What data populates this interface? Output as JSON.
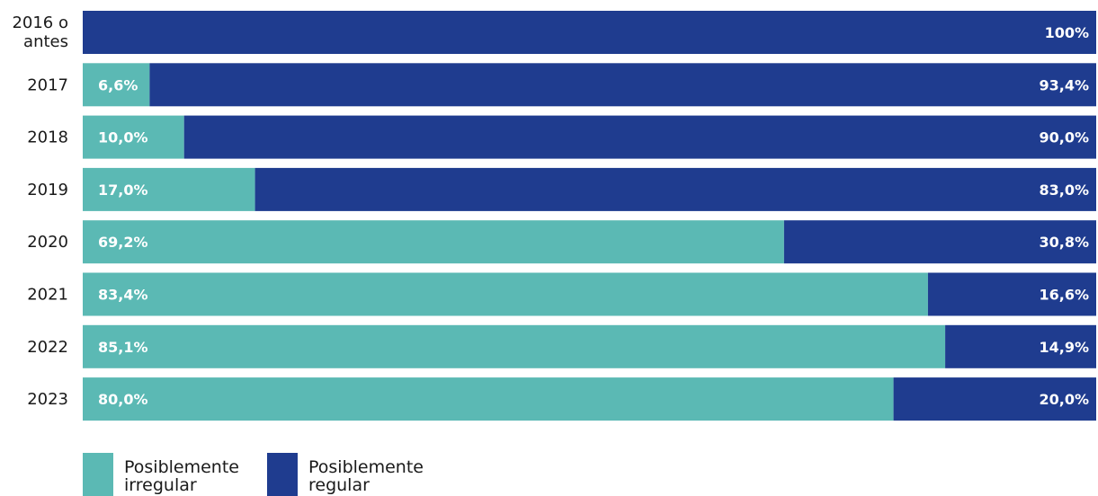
{
  "chart_data": {
    "type": "bar",
    "orientation": "horizontal",
    "stacked": true,
    "categories": [
      [
        "2016 o",
        "antes"
      ],
      [
        "2017"
      ],
      [
        "2018"
      ],
      [
        "2019"
      ],
      [
        "2020"
      ],
      [
        "2021"
      ],
      [
        "2022"
      ],
      [
        "2023"
      ]
    ],
    "series": [
      {
        "name": "Posiblemente irregular",
        "legend_lines": [
          "Posiblemente",
          "irregular"
        ],
        "color": "#5bb9b4",
        "values": [
          0,
          6.6,
          10.0,
          17.0,
          69.2,
          83.4,
          85.1,
          80.0
        ],
        "labels": [
          "",
          "6,6%",
          "10,0%",
          "17,0%",
          "69,2%",
          "83,4%",
          "85,1%",
          "80,0%"
        ]
      },
      {
        "name": "Posiblemente regular",
        "legend_lines": [
          "Posiblemente",
          "regular"
        ],
        "color": "#1f3c8f",
        "values": [
          100,
          93.4,
          90.0,
          83.0,
          30.8,
          16.6,
          14.9,
          20.0
        ],
        "labels": [
          "100%",
          "93,4%",
          "90,0%",
          "83,0%",
          "30,8%",
          "16,6%",
          "14,9%",
          "20,0%"
        ]
      }
    ],
    "xlim": [
      0,
      100
    ],
    "title": "",
    "xlabel": "",
    "ylabel": "",
    "grid": false,
    "legend_position": "bottom-left"
  }
}
